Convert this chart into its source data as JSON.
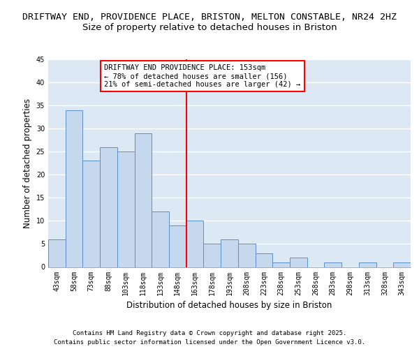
{
  "title": "DRIFTWAY END, PROVIDENCE PLACE, BRISTON, MELTON CONSTABLE, NR24 2HZ",
  "subtitle": "Size of property relative to detached houses in Briston",
  "xlabel": "Distribution of detached houses by size in Briston",
  "ylabel": "Number of detached properties",
  "categories": [
    "43sqm",
    "58sqm",
    "73sqm",
    "88sqm",
    "103sqm",
    "118sqm",
    "133sqm",
    "148sqm",
    "163sqm",
    "178sqm",
    "193sqm",
    "208sqm",
    "223sqm",
    "238sqm",
    "253sqm",
    "268sqm",
    "283sqm",
    "298sqm",
    "313sqm",
    "328sqm",
    "343sqm"
  ],
  "values": [
    6,
    34,
    23,
    26,
    25,
    29,
    12,
    9,
    10,
    5,
    6,
    5,
    3,
    1,
    2,
    0,
    1,
    0,
    1,
    0,
    1
  ],
  "bar_color": "#c5d8ed",
  "bar_edge_color": "#5b8fc9",
  "vline_x": 7.5,
  "vline_color": "red",
  "annotation_text": "DRIFTWAY END PROVIDENCE PLACE: 153sqm\n← 78% of detached houses are smaller (156)\n21% of semi-detached houses are larger (42) →",
  "annotation_box_color": "white",
  "annotation_box_edge": "red",
  "ylim": [
    0,
    45
  ],
  "yticks": [
    0,
    5,
    10,
    15,
    20,
    25,
    30,
    35,
    40,
    45
  ],
  "footer_line1": "Contains HM Land Registry data © Crown copyright and database right 2025.",
  "footer_line2": "Contains public sector information licensed under the Open Government Licence v3.0.",
  "bg_color": "#dce9f5",
  "fig_bg_color": "white",
  "title_fontsize": 9.5,
  "subtitle_fontsize": 9.5,
  "axis_label_fontsize": 8.5,
  "tick_fontsize": 7,
  "footer_fontsize": 6.5,
  "ann_fontsize": 7.5
}
